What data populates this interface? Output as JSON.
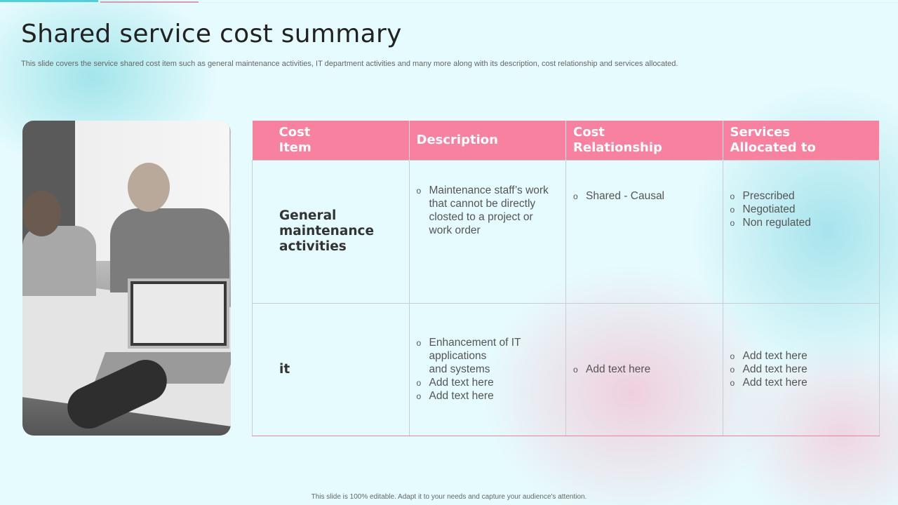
{
  "title": "Shared service cost summary",
  "subtitle": "This slide covers the service shared cost item such as general maintenance activities, IT department activities and many more along with its description, cost relationship and services allocated.",
  "table": {
    "headers": [
      [
        "Cost",
        "Item"
      ],
      [
        "Description"
      ],
      [
        "Cost",
        "Relationship"
      ],
      [
        "Services",
        "Allocated to"
      ]
    ],
    "header_color": "#f7819e",
    "rows": [
      {
        "item": [
          "General",
          "maintenance",
          "activities"
        ],
        "description": [
          [
            "Maintenance  staff’s work",
            "that cannot be directly",
            "closted to a project or",
            "work order"
          ]
        ],
        "relationship": [
          [
            "Shared - Causal"
          ]
        ],
        "services": [
          [
            "Prescribed"
          ],
          [
            "Negotiated"
          ],
          [
            "Non regulated"
          ]
        ]
      },
      {
        "item": [
          "it"
        ],
        "description": [
          [
            "Enhancement  of IT",
            "applications",
            "and systems"
          ],
          [
            "Add text here"
          ],
          [
            "Add text here"
          ]
        ],
        "relationship": [
          [
            "Add text here"
          ]
        ],
        "services": [
          [
            "Add text here"
          ],
          [
            "Add text here"
          ],
          [
            "Add text here"
          ]
        ]
      }
    ]
  },
  "footer": "This slide is 100% editable. Adapt it to your needs and capture your audience's attention."
}
